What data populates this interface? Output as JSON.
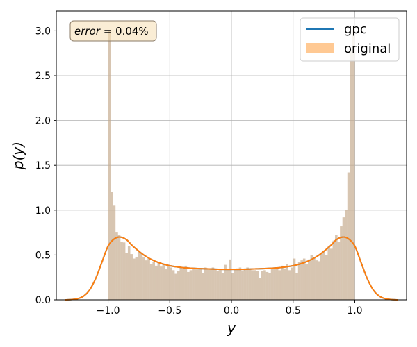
{
  "chart_data": {
    "type": "histogram+line",
    "title": "",
    "xlabel": "y",
    "ylabel": "p(y)",
    "xlim": [
      -1.42,
      1.42
    ],
    "ylim": [
      0,
      3.22
    ],
    "xticks": [
      -1.0,
      -0.5,
      0.0,
      0.5,
      1.0
    ],
    "xtick_labels": [
      "−1.0",
      "−0.5",
      "0.0",
      "0.5",
      "1.0"
    ],
    "yticks": [
      0.0,
      0.5,
      1.0,
      1.5,
      2.0,
      2.5,
      3.0
    ],
    "ytick_labels": [
      "0.0",
      "0.5",
      "1.0",
      "1.5",
      "2.0",
      "2.5",
      "3.0"
    ],
    "grid": true,
    "legend_position": "top-right",
    "annotation": {
      "text_italic": "error",
      "text_rest": " = 0.04%",
      "position": "top-left"
    },
    "series": [
      {
        "name": "gpc",
        "kind": "line",
        "color": "#1f77b4",
        "x": [
          -1.35,
          -1.3,
          -1.25,
          -1.2,
          -1.15,
          -1.1,
          -1.05,
          -1.0,
          -0.95,
          -0.9,
          -0.85,
          -0.8,
          -0.7,
          -0.6,
          -0.5,
          -0.4,
          -0.3,
          -0.2,
          -0.1,
          0.0,
          0.1,
          0.2,
          0.3,
          0.4,
          0.5,
          0.6,
          0.7,
          0.8,
          0.85,
          0.9,
          0.95,
          1.0,
          1.05,
          1.1,
          1.15,
          1.2,
          1.25,
          1.3,
          1.35
        ],
        "values": [
          0.0,
          0.003,
          0.012,
          0.04,
          0.11,
          0.24,
          0.42,
          0.6,
          0.68,
          0.7,
          0.67,
          0.6,
          0.49,
          0.42,
          0.38,
          0.36,
          0.35,
          0.345,
          0.34,
          0.34,
          0.34,
          0.345,
          0.35,
          0.36,
          0.38,
          0.42,
          0.49,
          0.6,
          0.67,
          0.7,
          0.68,
          0.6,
          0.42,
          0.24,
          0.11,
          0.04,
          0.012,
          0.003,
          0.0
        ]
      },
      {
        "name": "gpc-overlay",
        "kind": "line",
        "color": "#ff7f0e",
        "legend": false
      },
      {
        "name": "original",
        "kind": "histogram",
        "color": "#ffbb78",
        "bin_range": [
          -1.0,
          1.0
        ],
        "bin_count": 100,
        "values": [
          3.0,
          1.2,
          1.05,
          0.75,
          0.72,
          0.65,
          0.64,
          0.52,
          0.6,
          0.51,
          0.46,
          0.48,
          0.55,
          0.52,
          0.48,
          0.44,
          0.46,
          0.4,
          0.42,
          0.38,
          0.42,
          0.37,
          0.4,
          0.34,
          0.38,
          0.36,
          0.33,
          0.29,
          0.32,
          0.36,
          0.35,
          0.38,
          0.31,
          0.33,
          0.35,
          0.34,
          0.35,
          0.34,
          0.3,
          0.36,
          0.34,
          0.35,
          0.36,
          0.34,
          0.32,
          0.33,
          0.3,
          0.39,
          0.34,
          0.45,
          0.3,
          0.34,
          0.35,
          0.36,
          0.32,
          0.35,
          0.36,
          0.34,
          0.33,
          0.33,
          0.32,
          0.24,
          0.32,
          0.33,
          0.31,
          0.3,
          0.35,
          0.34,
          0.36,
          0.33,
          0.38,
          0.35,
          0.4,
          0.33,
          0.36,
          0.46,
          0.3,
          0.42,
          0.44,
          0.46,
          0.4,
          0.45,
          0.5,
          0.47,
          0.44,
          0.43,
          0.52,
          0.55,
          0.5,
          0.6,
          0.57,
          0.66,
          0.72,
          0.65,
          0.82,
          0.92,
          1.0,
          1.42,
          2.78,
          3.05
        ]
      }
    ]
  }
}
